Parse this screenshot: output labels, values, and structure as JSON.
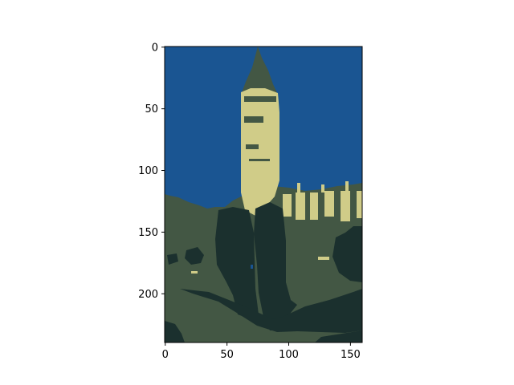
{
  "chart_data": {
    "type": "heatmap",
    "subtype": "image",
    "title": "",
    "xlabel": "",
    "ylabel": "",
    "image_size": {
      "width": 160,
      "height": 240
    },
    "xlim": [
      -0.5,
      159.5
    ],
    "ylim": [
      239.5,
      -0.5
    ],
    "x_ticks": [
      0,
      50,
      100,
      150
    ],
    "y_ticks": [
      0,
      50,
      100,
      150,
      200
    ],
    "x_tick_labels": [
      "0",
      "50",
      "100",
      "150"
    ],
    "y_tick_labels": [
      "0",
      "50",
      "100",
      "150",
      "200"
    ],
    "grid": false,
    "palette": {
      "sky": "#1a5592",
      "tower": "#d0cc88",
      "trees": "#435744",
      "shadow": "#1b302e"
    },
    "subject": "Quantized 4-color image of a clock tower (Big Ben) and Parliament with trees in the foreground"
  }
}
